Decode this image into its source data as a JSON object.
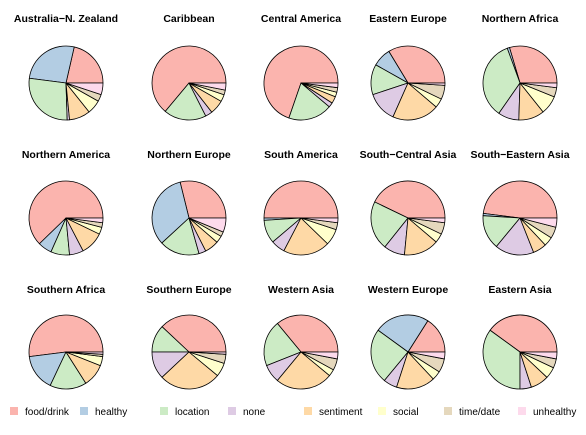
{
  "chart_data": {
    "type": "pie",
    "legend_position": "bottom",
    "categories": [
      "food/drink",
      "healthy",
      "location",
      "none",
      "sentiment",
      "social",
      "time/date",
      "unhealthy"
    ],
    "colors": {
      "food/drink": "#fbb4ae",
      "healthy": "#b3cde3",
      "location": "#ccebc5",
      "none": "#decbe4",
      "sentiment": "#fed9a6",
      "social": "#ffffcc",
      "time/date": "#e5d8bd",
      "unhealthy": "#fddaec"
    },
    "panels": [
      {
        "title": "Australia−N. Zealand",
        "values": [
          21,
          26,
          27,
          1,
          9,
          6,
          3,
          5
        ]
      },
      {
        "title": "Caribbean",
        "values": [
          62,
          0,
          18,
          3,
          6,
          3,
          2,
          3
        ]
      },
      {
        "title": "Central America",
        "values": [
          69,
          0,
          19,
          2,
          3,
          2,
          2,
          2
        ]
      },
      {
        "title": "Eastern Europe",
        "values": [
          33,
          8,
          13,
          13,
          20,
          4,
          6,
          1
        ]
      },
      {
        "title": "Northern Africa",
        "values": [
          29,
          1,
          34,
          9,
          11,
          8,
          4,
          2
        ]
      },
      {
        "title": "Northern America",
        "values": [
          61,
          6,
          8,
          6,
          10,
          3,
          2,
          2
        ]
      },
      {
        "title": "Northern Europe",
        "values": [
          28,
          32,
          17,
          3,
          6,
          3,
          2,
          6
        ]
      },
      {
        "title": "South America",
        "values": [
          49,
          1,
          10,
          6,
          20,
          7,
          3,
          2
        ]
      },
      {
        "title": "South−Central Asia",
        "values": [
          42,
          0,
          21,
          9,
          15,
          4,
          5,
          2
        ]
      },
      {
        "title": "South−Eastern Asia",
        "values": [
          48,
          1,
          15,
          17,
          6,
          4,
          5,
          4
        ]
      },
      {
        "title": "Southern Africa",
        "values": [
          52,
          16,
          16,
          0,
          10,
          4,
          1,
          1
        ]
      },
      {
        "title": "Southern Europe",
        "values": [
          38,
          0,
          12,
          12,
          27,
          6,
          4,
          1
        ]
      },
      {
        "title": "Western Asia",
        "values": [
          36,
          0,
          20,
          8,
          25,
          3,
          5,
          3
        ]
      },
      {
        "title": "Western Europe",
        "values": [
          16,
          24,
          24,
          6,
          17,
          4,
          6,
          3
        ]
      },
      {
        "title": "Eastern Asia",
        "values": [
          40,
          0,
          35,
          5,
          8,
          5,
          4,
          3
        ]
      }
    ]
  }
}
